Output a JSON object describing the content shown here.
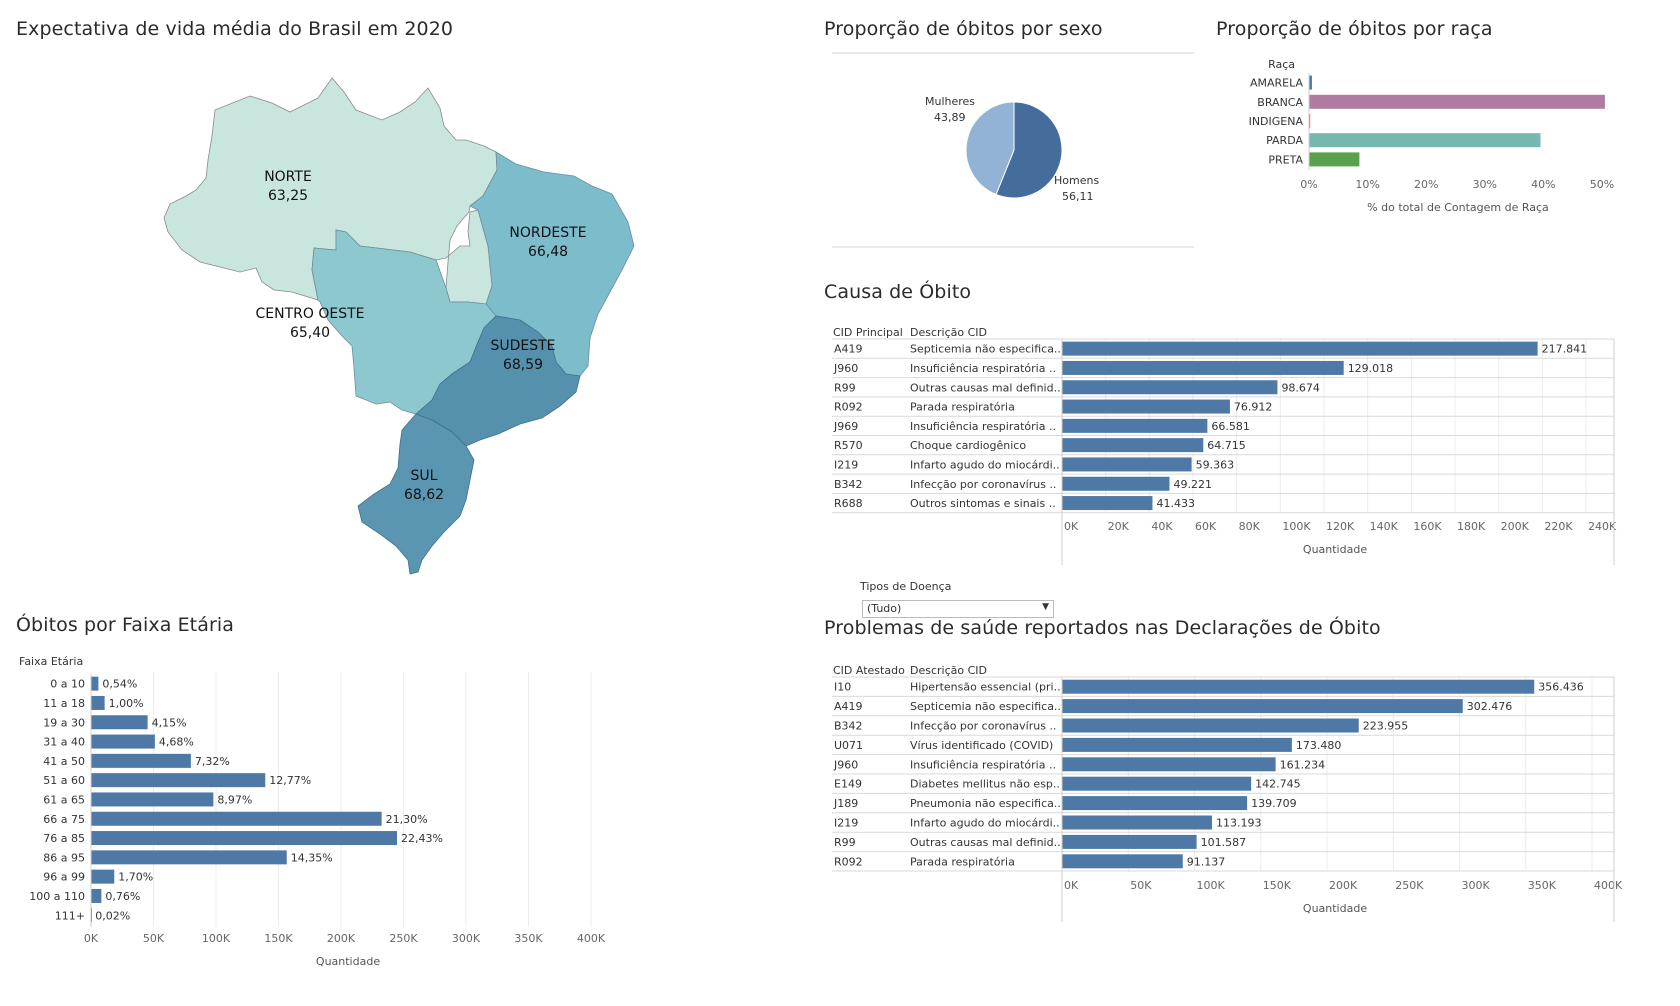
{
  "titles": {
    "map": "Expectativa de vida média do Brasil em 2020",
    "age": "Óbitos por Faixa Etária",
    "sex": "Proporção de óbitos por sexo",
    "race": "Proporção de óbitos por raça",
    "cause": "Causa de Óbito",
    "problems": "Problemas de saúde reportados nas Declarações de Óbito"
  },
  "filter": {
    "label": "Tipos de Doença",
    "value": "(Tudo)"
  },
  "colors": {
    "bar": "#4e79a7",
    "map_norte": "#c8e6de",
    "map_nordeste": "#7cbccb",
    "map_centro": "#8ec8cf",
    "map_sudeste": "#5591ad",
    "map_sul": "#5a96b2",
    "pie_homens": "#456d9c",
    "pie_mulheres": "#93b3d6",
    "race": [
      "#4e79a7",
      "#b07aa1",
      "#e15759",
      "#76b7b2",
      "#59a14f"
    ]
  },
  "chart_data": [
    {
      "type": "map",
      "title": "Expectativa de vida média do Brasil em 2020",
      "regions": [
        {
          "name": "NORTE",
          "value": "63,25"
        },
        {
          "name": "NORDESTE",
          "value": "66,48"
        },
        {
          "name": "CENTRO OESTE",
          "value": "65,40"
        },
        {
          "name": "SUDESTE",
          "value": "68,59"
        },
        {
          "name": "SUL",
          "value": "68,62"
        }
      ]
    },
    {
      "type": "bar",
      "orientation": "horizontal",
      "title": "Óbitos por Faixa Etária",
      "row_header": "Faixa Etária",
      "xlabel": "Quantidade",
      "xlim": [
        0,
        400000
      ],
      "xticks": [
        "0K",
        "50K",
        "100K",
        "150K",
        "200K",
        "250K",
        "300K",
        "350K",
        "400K"
      ],
      "categories": [
        "0 a 10",
        "11 a 18",
        "19 a 30",
        "31 a 40",
        "41 a 50",
        "51 a 60",
        "61 a 65",
        "66 a 75",
        "76 a 85",
        "86 a 95",
        "96 a 99",
        "100 a 110",
        "111+"
      ],
      "values": [
        5900,
        10900,
        45300,
        51100,
        79900,
        139400,
        97900,
        232500,
        244800,
        156600,
        18600,
        8300,
        200
      ],
      "labels": [
        "0,54%",
        "1,00%",
        "4,15%",
        "4,68%",
        "7,32%",
        "12,77%",
        "8,97%",
        "21,30%",
        "22,43%",
        "14,35%",
        "1,70%",
        "0,76%",
        "0,02%"
      ],
      "grid": true
    },
    {
      "type": "pie",
      "title": "Proporção de óbitos por sexo",
      "slices": [
        {
          "name": "Homens",
          "value": 56.11,
          "label": "56,11"
        },
        {
          "name": "Mulheres",
          "value": 43.89,
          "label": "43,89"
        }
      ]
    },
    {
      "type": "bar",
      "orientation": "horizontal",
      "title": "Proporção de óbitos por raça",
      "row_header": "Raça",
      "xlabel": "% do total de Contagem de Raça",
      "xlim": [
        0,
        50
      ],
      "xticks": [
        "0%",
        "10%",
        "20%",
        "30%",
        "40%",
        "50%"
      ],
      "categories": [
        "AMARELA",
        "BRANCA",
        "INDIGENA",
        "PARDA",
        "PRETA"
      ],
      "values": [
        0.5,
        50.5,
        0.2,
        39.5,
        8.6
      ]
    },
    {
      "type": "bar",
      "orientation": "horizontal",
      "title": "Causa de Óbito",
      "col_headers": [
        "CID Principal",
        "Descrição CID"
      ],
      "xlabel": "Quantidade",
      "xlim": [
        0,
        240000
      ],
      "xticks": [
        "0K",
        "20K",
        "40K",
        "60K",
        "80K",
        "100K",
        "120K",
        "140K",
        "160K",
        "180K",
        "200K",
        "220K",
        "240K"
      ],
      "codes": [
        "A419",
        "J960",
        "R99",
        "R092",
        "J969",
        "R570",
        "I219",
        "B342",
        "R688"
      ],
      "descriptions": [
        "Septicemia não especifica..",
        "Insuficiência respiratória ..",
        "Outras causas mal definid..",
        "Parada respiratória",
        "Insuficiência respiratória ..",
        "Choque cardiogênico",
        "Infarto agudo do miocárdi..",
        "Infecção por coronavírus ..",
        "Outros sintomas e sinais .."
      ],
      "values": [
        217841,
        129018,
        98674,
        76912,
        66581,
        64715,
        59363,
        49221,
        41433
      ],
      "labels": [
        "217.841",
        "129.018",
        "98.674",
        "76.912",
        "66.581",
        "64.715",
        "59.363",
        "49.221",
        "41.433"
      ],
      "grid": true
    },
    {
      "type": "bar",
      "orientation": "horizontal",
      "title": "Problemas de saúde reportados nas Declarações de Óbito",
      "col_headers": [
        "CID Atestado",
        "Descrição CID"
      ],
      "xlabel": "Quantidade",
      "xlim": [
        0,
        400000
      ],
      "xticks": [
        "0K",
        "50K",
        "100K",
        "150K",
        "200K",
        "250K",
        "300K",
        "350K",
        "400K"
      ],
      "codes": [
        "I10",
        "A419",
        "B342",
        "U071",
        "J960",
        "E149",
        "J189",
        "I219",
        "R99",
        "R092"
      ],
      "descriptions": [
        "Hipertensão essencial (pri..",
        "Septicemia não especifica..",
        "Infecção por coronavírus ..",
        "Vírus identificado (COVID)",
        "Insuficiência respiratória ..",
        "Diabetes mellitus não esp..",
        "Pneumonia não especifica..",
        "Infarto agudo do miocárdi..",
        "Outras causas mal definid..",
        "Parada respiratória"
      ],
      "values": [
        356436,
        302476,
        223955,
        173480,
        161234,
        142745,
        139709,
        113193,
        101587,
        91137
      ],
      "labels": [
        "356.436",
        "302.476",
        "223.955",
        "173.480",
        "161.234",
        "142.745",
        "139.709",
        "113.193",
        "101.587",
        "91.137"
      ],
      "grid": true
    }
  ]
}
